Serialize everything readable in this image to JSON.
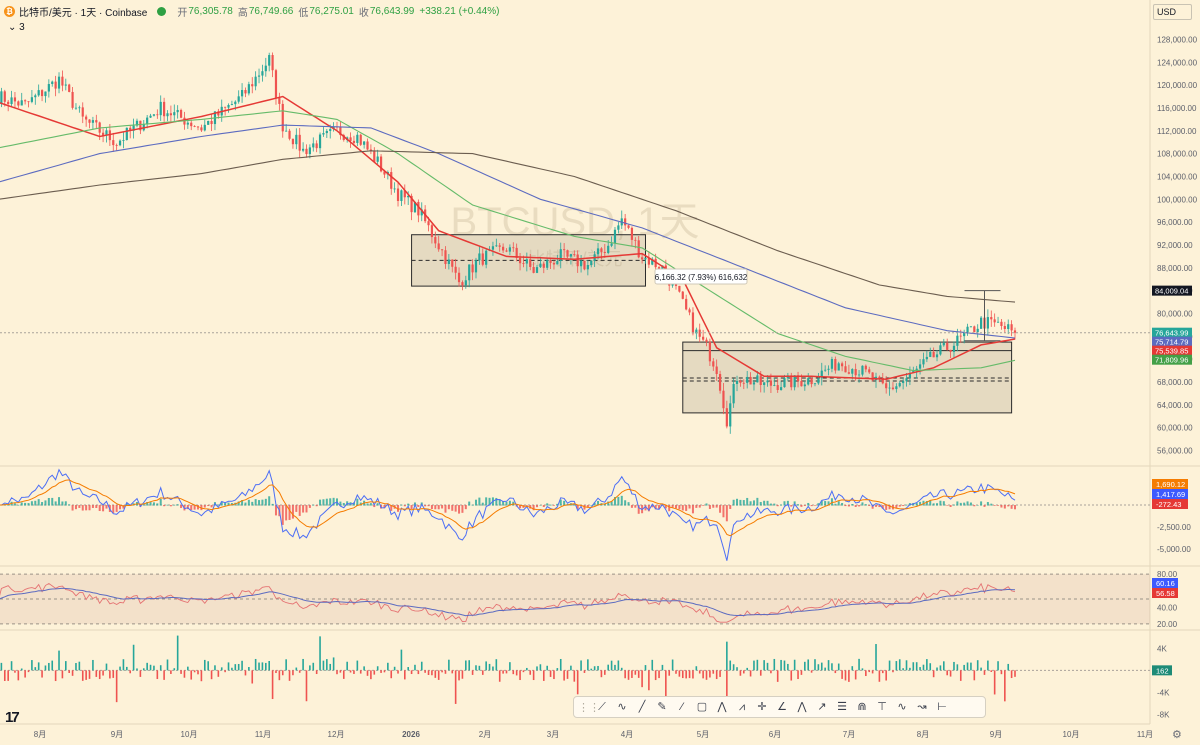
{
  "header": {
    "symbol": "比特币/美元 · 1天 · Coinbase",
    "open_label": "开",
    "open": "76,305.78",
    "high_label": "高",
    "high": "76,749.66",
    "low_label": "低",
    "low": "76,275.01",
    "close_label": "收",
    "close": "76,643.99",
    "change": "+338.21 (+0.44%)",
    "indicator_count": "3",
    "currency": "USD"
  },
  "watermark": {
    "ticker": "BTCUSD, 1天",
    "name": "比特币/美元"
  },
  "measure_label": "6,166.32 (7.93%) 616,632",
  "toolbar_icons": [
    "line-tool-icon",
    "path-icon",
    "trend-line-icon",
    "pencil-icon",
    "brush-icon",
    "rectangle-icon",
    "pattern-icon",
    "xabcd-icon",
    "crosshair-icon",
    "angle-icon",
    "abcd-icon",
    "arrow-icon",
    "fib-icon",
    "head-shoulders-icon",
    "long-position-icon",
    "elliott-icon",
    "forecast-icon",
    "date-range-icon"
  ],
  "toolbar_glyphs": [
    "⟋",
    "∿",
    "╱",
    "✎",
    "⁄",
    "▢",
    "⋀",
    "⩘",
    "✛",
    "∠",
    "⋀",
    "↗",
    "☰",
    "⋒",
    "⊤",
    "∿",
    "↝",
    "⊢"
  ],
  "colors": {
    "bg": "#fdf2d8",
    "up": "#26a69a",
    "down": "#ef5350",
    "ema20": "#e53935",
    "ema50": "#66bb6a",
    "ema100": "#5c6bc0",
    "ema200": "#6b5d4f",
    "macd": "#4c6ef5",
    "signal": "#f57c00",
    "rsi": "#e57373",
    "rsi_ma": "#5c6bc0"
  },
  "chart_data": {
    "type": "candlestick",
    "title": "BTCUSD, 1天",
    "x_ticks": [
      "8月",
      "9月",
      "10月",
      "11月",
      "12月",
      "2026",
      "2月",
      "3月",
      "4月",
      "5月",
      "6月",
      "7月",
      "8月",
      "9月",
      "10月",
      "11月"
    ],
    "price_ticks": [
      "128,000.00",
      "124,000.00",
      "120,000.00",
      "116,000.00",
      "112,000.00",
      "108,000.00",
      "104,000.00",
      "100,000.00",
      "96,000.00",
      "92,000.00",
      "88,000.00",
      "84,000.00",
      "80,000.00",
      "76,000.00",
      "72,000.00",
      "68,000.00",
      "64,000.00",
      "60,000.00",
      "56,000.00"
    ],
    "price_range": [
      54000,
      130000
    ],
    "price_labels": [
      {
        "value": 84009.04,
        "text": "84,009.04",
        "bg": "#131722",
        "fg": "#ffffff"
      },
      {
        "value": 76643.99,
        "text": "76,643.99",
        "bg": "#26a69a",
        "fg": "#ffffff"
      },
      {
        "value": 75714.79,
        "text": "75,714.79",
        "bg": "#5c6bc0",
        "fg": "#ffffff"
      },
      {
        "value": 75539.85,
        "text": "75,539.85",
        "bg": "#e53935",
        "fg": "#ffffff"
      },
      {
        "value": 71809.96,
        "text": "71,809.96",
        "bg": "#43a047",
        "fg": "#ffffff"
      }
    ],
    "anchors": [
      [
        0,
        118000
      ],
      [
        8,
        116500
      ],
      [
        18,
        121000
      ],
      [
        25,
        114000
      ],
      [
        35,
        110000
      ],
      [
        48,
        116000
      ],
      [
        60,
        112500
      ],
      [
        72,
        118000
      ],
      [
        80,
        124500
      ],
      [
        84,
        113000
      ],
      [
        90,
        108500
      ],
      [
        100,
        112000
      ],
      [
        106,
        111000
      ],
      [
        112,
        106500
      ],
      [
        118,
        101000
      ],
      [
        124,
        98000
      ],
      [
        130,
        92000
      ],
      [
        136,
        85500
      ],
      [
        142,
        89500
      ],
      [
        150,
        91500
      ],
      [
        158,
        87500
      ],
      [
        166,
        90000
      ],
      [
        174,
        88500
      ],
      [
        180,
        92000
      ],
      [
        184,
        96500
      ],
      [
        190,
        90000
      ],
      [
        196,
        88000
      ],
      [
        200,
        84000
      ],
      [
        206,
        76500
      ],
      [
        209,
        74000
      ],
      [
        212,
        70500
      ],
      [
        215,
        61500
      ],
      [
        218,
        69000
      ],
      [
        226,
        67500
      ],
      [
        234,
        68000
      ],
      [
        240,
        68500
      ],
      [
        248,
        71500
      ],
      [
        256,
        69500
      ],
      [
        262,
        66500
      ],
      [
        268,
        68500
      ],
      [
        276,
        72500
      ],
      [
        284,
        75500
      ],
      [
        290,
        78500
      ],
      [
        295,
        78000
      ],
      [
        300,
        76600
      ]
    ],
    "ema": [
      {
        "name": "EMA20",
        "color": "#e53935",
        "points": [
          [
            0,
            117000
          ],
          [
            30,
            111000
          ],
          [
            60,
            114500
          ],
          [
            84,
            118000
          ],
          [
            100,
            112000
          ],
          [
            118,
            103000
          ],
          [
            130,
            94500
          ],
          [
            150,
            90000
          ],
          [
            170,
            89500
          ],
          [
            190,
            90500
          ],
          [
            202,
            86000
          ],
          [
            212,
            74000
          ],
          [
            226,
            69000
          ],
          [
            240,
            69000
          ],
          [
            262,
            68500
          ],
          [
            276,
            70500
          ],
          [
            290,
            74500
          ],
          [
            300,
            75539.85
          ]
        ]
      },
      {
        "name": "EMA50",
        "color": "#66bb6a",
        "points": [
          [
            0,
            109000
          ],
          [
            30,
            112500
          ],
          [
            60,
            114000
          ],
          [
            84,
            115500
          ],
          [
            100,
            114000
          ],
          [
            118,
            108000
          ],
          [
            140,
            99000
          ],
          [
            170,
            93500
          ],
          [
            190,
            91500
          ],
          [
            210,
            84000
          ],
          [
            230,
            76500
          ],
          [
            250,
            72500
          ],
          [
            270,
            70000
          ],
          [
            290,
            70500
          ],
          [
            300,
            71809.96
          ]
        ]
      },
      {
        "name": "EMA100",
        "color": "#5c6bc0",
        "points": [
          [
            0,
            103000
          ],
          [
            30,
            108000
          ],
          [
            60,
            111000
          ],
          [
            84,
            113000
          ],
          [
            110,
            112500
          ],
          [
            130,
            108000
          ],
          [
            160,
            100000
          ],
          [
            190,
            95000
          ],
          [
            220,
            88000
          ],
          [
            250,
            81000
          ],
          [
            280,
            77000
          ],
          [
            300,
            75714.79
          ]
        ]
      },
      {
        "name": "EMA200",
        "color": "#6b5d4f",
        "points": [
          [
            0,
            100000
          ],
          [
            30,
            102500
          ],
          [
            60,
            104500
          ],
          [
            84,
            107000
          ],
          [
            110,
            108500
          ],
          [
            140,
            108000
          ],
          [
            170,
            104000
          ],
          [
            200,
            98000
          ],
          [
            230,
            91000
          ],
          [
            260,
            85000
          ],
          [
            280,
            83000
          ],
          [
            300,
            82000
          ]
        ]
      }
    ],
    "zones": [
      {
        "x0": 122,
        "x1": 191,
        "y0": 84800,
        "y1": 93800,
        "mid": 89300
      },
      {
        "x0": 202,
        "x1": 299,
        "y0": 62600,
        "y1": 75000,
        "mid": 68700,
        "inner_top": 73500
      }
    ],
    "macd": {
      "ticks": [
        "1,690.12",
        "1,417.69",
        "-272.43",
        "-2,500.00",
        "-5,000.00"
      ],
      "range": [
        -6500,
        4000
      ],
      "labels": [
        {
          "text": "1,690.12",
          "bg": "#f57c00"
        },
        {
          "text": "1,417.69",
          "bg": "#3d5afe"
        },
        {
          "text": "-272.43",
          "bg": "#e53935"
        }
      ]
    },
    "rsi": {
      "ticks": [
        "80.00",
        "60.00",
        "40.00",
        "20.00"
      ],
      "range": [
        15,
        85
      ],
      "labels": [
        {
          "text": "60.16",
          "bg": "#3d5afe"
        },
        {
          "text": "56.58",
          "bg": "#e53935"
        }
      ]
    },
    "volume": {
      "ticks": [
        "4K",
        "0",
        "-4K",
        "-8K"
      ],
      "range": [
        -9000,
        5500
      ],
      "label": {
        "text": "162",
        "bg": "#1e8b77"
      }
    }
  }
}
